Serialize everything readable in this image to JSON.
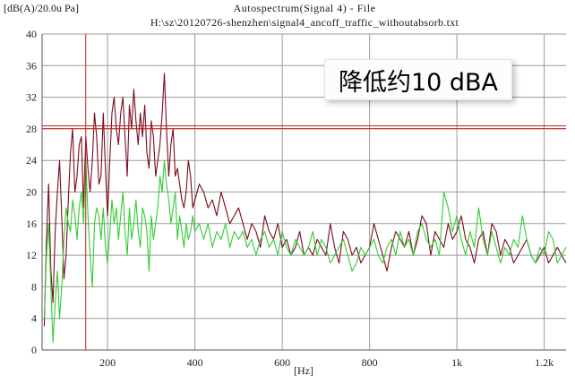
{
  "chart_data": {
    "type": "line",
    "title": "Autospectrum(Signal 4) - File",
    "subtitle": "H:\\sz\\20120726-shenzhen\\signal4_ancoff_traffic_withoutabsorb.txt",
    "ylabel": "[dB(A)/20.0u Pa]",
    "xlabel": "[Hz]",
    "xlim": [
      50,
      1250
    ],
    "ylim": [
      0,
      40
    ],
    "x_ticks": [
      200,
      400,
      600,
      800,
      1000,
      1200
    ],
    "x_tick_labels": [
      "200",
      "400",
      "600",
      "800",
      "1k",
      "1.2k"
    ],
    "y_ticks": [
      0,
      4,
      8,
      12,
      16,
      20,
      24,
      28,
      32,
      36,
      40
    ],
    "grid": true,
    "annotation": "降低约10 dBA",
    "cursor_x": 150,
    "cursor_y": 28.2,
    "series": [
      {
        "color": "#7a0a1e",
        "x": [
          55,
          60,
          65,
          70,
          75,
          80,
          85,
          90,
          95,
          100,
          105,
          110,
          115,
          120,
          125,
          130,
          135,
          140,
          145,
          150,
          155,
          160,
          165,
          170,
          175,
          180,
          185,
          190,
          195,
          200,
          205,
          210,
          215,
          220,
          225,
          230,
          235,
          240,
          245,
          250,
          255,
          260,
          265,
          270,
          275,
          280,
          285,
          290,
          295,
          300,
          305,
          310,
          315,
          320,
          325,
          330,
          335,
          340,
          345,
          350,
          355,
          360,
          365,
          370,
          375,
          380,
          385,
          390,
          395,
          400,
          410,
          420,
          430,
          440,
          450,
          460,
          470,
          480,
          490,
          500,
          510,
          520,
          530,
          540,
          550,
          560,
          570,
          580,
          590,
          600,
          610,
          620,
          630,
          640,
          650,
          660,
          670,
          680,
          690,
          700,
          710,
          720,
          730,
          740,
          750,
          760,
          770,
          780,
          790,
          800,
          810,
          820,
          830,
          840,
          850,
          860,
          870,
          880,
          890,
          900,
          910,
          920,
          930,
          940,
          950,
          960,
          970,
          980,
          990,
          1000,
          1010,
          1020,
          1030,
          1040,
          1050,
          1060,
          1070,
          1080,
          1090,
          1100,
          1110,
          1120,
          1130,
          1140,
          1150,
          1160,
          1170,
          1180,
          1190,
          1200,
          1210,
          1220,
          1230,
          1240,
          1250
        ],
        "y": [
          3,
          14,
          21,
          10,
          6,
          15,
          20,
          24,
          17,
          9,
          12,
          19,
          25,
          28,
          20,
          22,
          26,
          27,
          18,
          27,
          23,
          20,
          24,
          30,
          27,
          21,
          22,
          30,
          23,
          17,
          24,
          30,
          32,
          28,
          26,
          30,
          32,
          27,
          22,
          31,
          28,
          33,
          29,
          26,
          30,
          27,
          31,
          25,
          23,
          29,
          27,
          22,
          24,
          26,
          30,
          35,
          28,
          22,
          26,
          28,
          22,
          23,
          21,
          19,
          18,
          20,
          24,
          22,
          18,
          19,
          21,
          20,
          18,
          19,
          17,
          20,
          18,
          16,
          17,
          18,
          16,
          14,
          16,
          15,
          13,
          17,
          15,
          14,
          16,
          13,
          14,
          12,
          13,
          15,
          12,
          13,
          12,
          14,
          13,
          12,
          16,
          13,
          11,
          15,
          14,
          12,
          13,
          11,
          12,
          13,
          16,
          14,
          12,
          10,
          13,
          15,
          14,
          13,
          15,
          12,
          14,
          17,
          16,
          12,
          15,
          14,
          13,
          16,
          14,
          15,
          17,
          14,
          13,
          11,
          14,
          15,
          12,
          16,
          15,
          12,
          14,
          13,
          11,
          12,
          13,
          14,
          12,
          11,
          12,
          13,
          11,
          12,
          13,
          12,
          11
        ]
      },
      {
        "color": "#33cc33",
        "x": [
          55,
          60,
          65,
          70,
          75,
          80,
          85,
          90,
          95,
          100,
          105,
          110,
          115,
          120,
          125,
          130,
          135,
          140,
          145,
          150,
          155,
          160,
          165,
          170,
          175,
          180,
          185,
          190,
          195,
          200,
          205,
          210,
          215,
          220,
          225,
          230,
          235,
          240,
          245,
          250,
          255,
          260,
          265,
          270,
          275,
          280,
          285,
          290,
          295,
          300,
          305,
          310,
          315,
          320,
          325,
          330,
          335,
          340,
          345,
          350,
          355,
          360,
          365,
          370,
          375,
          380,
          385,
          390,
          395,
          400,
          410,
          420,
          430,
          440,
          450,
          460,
          470,
          480,
          490,
          500,
          510,
          520,
          530,
          540,
          550,
          560,
          570,
          580,
          590,
          600,
          610,
          620,
          630,
          640,
          650,
          660,
          670,
          680,
          690,
          700,
          710,
          720,
          730,
          740,
          750,
          760,
          770,
          780,
          790,
          800,
          810,
          820,
          830,
          840,
          850,
          860,
          870,
          880,
          890,
          900,
          910,
          920,
          930,
          940,
          950,
          960,
          970,
          980,
          990,
          1000,
          1010,
          1020,
          1030,
          1040,
          1050,
          1060,
          1070,
          1080,
          1090,
          1100,
          1110,
          1120,
          1130,
          1140,
          1150,
          1160,
          1170,
          1180,
          1190,
          1200,
          1210,
          1220,
          1230,
          1240,
          1250
        ],
        "y": [
          4,
          12,
          16,
          8,
          1,
          6,
          10,
          4,
          8,
          14,
          18,
          16,
          15,
          19,
          17,
          14,
          18,
          20,
          16,
          24,
          17,
          12,
          8,
          16,
          18,
          17,
          14,
          18,
          13,
          11,
          15,
          19,
          16,
          18,
          14,
          17,
          20,
          15,
          12,
          18,
          14,
          16,
          19,
          15,
          13,
          18,
          17,
          15,
          10,
          17,
          14,
          16,
          18,
          22,
          20,
          24,
          21,
          19,
          16,
          18,
          20,
          14,
          17,
          15,
          13,
          16,
          14,
          15,
          17,
          15,
          16,
          14,
          16,
          13,
          15,
          14,
          16,
          13,
          15,
          14,
          15,
          13,
          14,
          12,
          14,
          15,
          13,
          14,
          12,
          15,
          13,
          12,
          14,
          13,
          12,
          13,
          15,
          12,
          14,
          13,
          11,
          12,
          13,
          14,
          12,
          10,
          11,
          13,
          12,
          13,
          14,
          12,
          11,
          13,
          14,
          12,
          15,
          13,
          14,
          12,
          15,
          16,
          14,
          13,
          14,
          12,
          20,
          18,
          15,
          17,
          14,
          12,
          15,
          13,
          18,
          14,
          12,
          15,
          13,
          11,
          13,
          12,
          14,
          13,
          17,
          14,
          12,
          11,
          13,
          12,
          15,
          14,
          11,
          12,
          13
        ]
      }
    ]
  }
}
